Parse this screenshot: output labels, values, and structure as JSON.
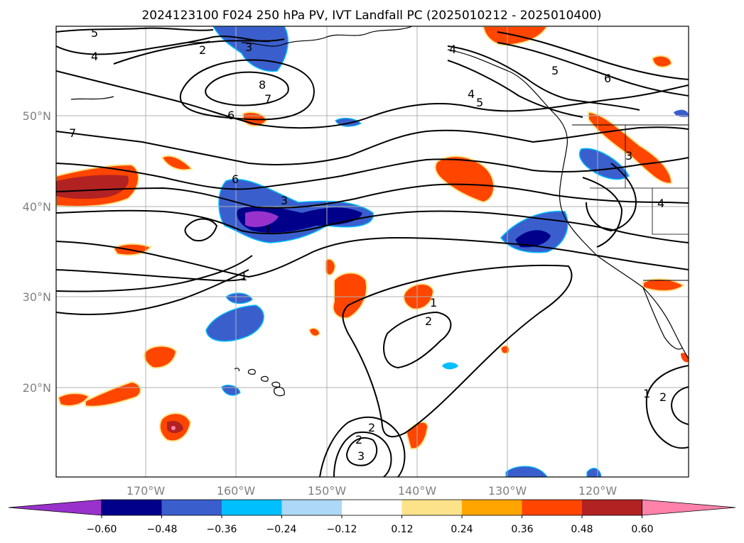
{
  "title": "2024123100 F024 250 hPa PV, IVT Landfall PC (2025010212 - 2025010400)",
  "map": {
    "lat_labels": [
      "50°N",
      "40°N",
      "30°N",
      "20°N"
    ],
    "lon_labels": [
      "170°W",
      "160°W",
      "150°W",
      "140°W",
      "130°W",
      "120°W"
    ],
    "pv_contour_labels": [
      "5",
      "4",
      "2",
      "3",
      "4",
      "5",
      "6",
      "7",
      "6",
      "7",
      "8",
      "4",
      "5",
      "6",
      "3",
      "1",
      "3",
      "4",
      "1",
      "2",
      "1",
      "2",
      "2",
      "3",
      "1",
      "2"
    ]
  },
  "colorbar": {
    "ticks": [
      "−0.60",
      "−0.48",
      "−0.36",
      "−0.24",
      "−0.12",
      "0.12",
      "0.24",
      "0.36",
      "0.48",
      "0.60"
    ],
    "colors": [
      "#9932CC",
      "#00008B",
      "#3A5FCD",
      "#00BFFF",
      "#ADD8F6",
      "#FFFFFF",
      "#FCE38A",
      "#FFA500",
      "#FF4500",
      "#B22222",
      "#FF82AB"
    ]
  }
}
